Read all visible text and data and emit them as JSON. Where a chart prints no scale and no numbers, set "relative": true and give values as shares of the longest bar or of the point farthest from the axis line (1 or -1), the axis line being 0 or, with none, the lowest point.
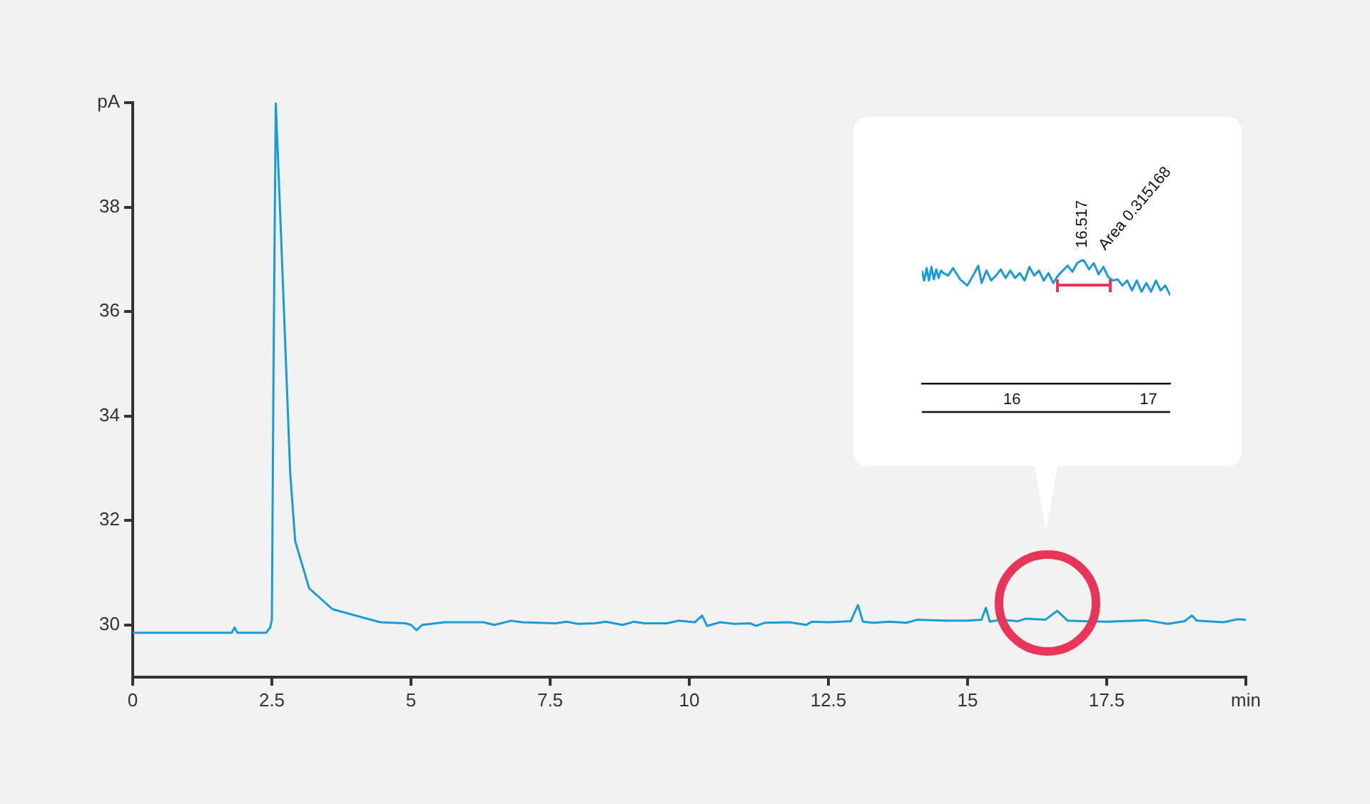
{
  "chart_data": [
    {
      "type": "line",
      "xlim": [
        0,
        20
      ],
      "ylim": [
        29,
        40
      ],
      "xticks": [
        0,
        2.5,
        5,
        7.5,
        10,
        12.5,
        15,
        17.5,
        {
          "value": 20,
          "label": "min"
        }
      ],
      "yticks": [
        30,
        32,
        34,
        36,
        38,
        {
          "value": 40,
          "label": "pA"
        }
      ],
      "x": [
        0,
        1.78,
        1.83,
        1.88,
        2.4,
        2.47,
        2.5,
        2.53,
        2.57,
        2.66,
        2.83,
        2.92,
        3.17,
        3.59,
        4.45,
        4.9,
        5.0,
        5.1,
        5.2,
        5.6,
        6.3,
        6.5,
        6.8,
        7.0,
        7.6,
        7.8,
        8.0,
        8.3,
        8.5,
        8.8,
        9.0,
        9.2,
        9.6,
        9.8,
        10.1,
        10.23,
        10.32,
        10.55,
        10.8,
        11.1,
        11.2,
        11.35,
        11.8,
        12.1,
        12.2,
        12.5,
        12.9,
        13.03,
        13.12,
        13.3,
        13.6,
        13.9,
        14.1,
        14.6,
        15.0,
        15.25,
        15.33,
        15.4,
        15.6,
        15.9,
        16.05,
        16.4,
        16.61,
        16.8,
        17.5,
        18.2,
        18.6,
        18.9,
        19.03,
        19.12,
        19.6,
        19.85,
        20
      ],
      "series": [
        {
          "color": "#1a9bd7",
          "values": [
            29.85,
            29.85,
            29.95,
            29.85,
            29.85,
            29.95,
            30.1,
            34.9,
            40,
            37.6,
            32.9,
            31.6,
            30.7,
            30.3,
            30.05,
            30.03,
            30.0,
            29.9,
            30.0,
            30.05,
            30.05,
            30.0,
            30.08,
            30.05,
            30.03,
            30.06,
            30.02,
            30.03,
            30.06,
            30.0,
            30.06,
            30.03,
            30.03,
            30.08,
            30.05,
            30.18,
            29.98,
            30.05,
            30.02,
            30.03,
            29.98,
            30.04,
            30.05,
            30.0,
            30.06,
            30.05,
            30.07,
            30.38,
            30.06,
            30.04,
            30.06,
            30.04,
            30.1,
            30.08,
            30.08,
            30.1,
            30.33,
            30.06,
            30.1,
            30.07,
            30.12,
            30.1,
            30.27,
            30.08,
            30.06,
            30.09,
            30.02,
            30.07,
            30.18,
            30.08,
            30.05,
            30.11,
            30.1
          ]
        }
      ]
    },
    {
      "type": "line",
      "relative": true,
      "tick_labels": "x",
      "xlim": [
        15.34,
        17.16
      ],
      "xticks": [
        16,
        17
      ],
      "x": [
        15.34,
        15.357,
        15.375,
        15.392,
        15.41,
        15.428,
        15.445,
        15.463,
        15.48,
        15.498,
        15.533,
        15.568,
        15.62,
        15.673,
        15.725,
        15.753,
        15.778,
        15.813,
        15.848,
        15.883,
        15.918,
        15.953,
        15.988,
        16.023,
        16.058,
        16.093,
        16.128,
        16.163,
        16.198,
        16.233,
        16.268,
        16.303,
        16.338,
        16.373,
        16.408,
        16.443,
        16.478,
        16.523,
        16.565,
        16.6,
        16.635,
        16.67,
        16.705,
        16.74,
        16.775,
        16.81,
        16.845,
        16.88,
        16.915,
        16.95,
        16.985,
        17.02,
        17.055,
        17.09,
        17.125,
        17.16
      ],
      "series": [
        {
          "color": "#1a9bd7",
          "values": [
            0.91,
            0.83,
            0.93,
            0.83,
            0.94,
            0.84,
            0.92,
            0.85,
            0.91,
            0.89,
            0.87,
            0.93,
            0.84,
            0.79,
            0.89,
            0.95,
            0.81,
            0.91,
            0.83,
            0.87,
            0.92,
            0.85,
            0.91,
            0.85,
            0.89,
            0.83,
            0.94,
            0.87,
            0.91,
            0.83,
            0.89,
            0.81,
            0.87,
            0.91,
            0.95,
            0.9,
            0.97,
            1,
            0.92,
            0.97,
            0.88,
            0.94,
            0.86,
            0.83,
            0.84,
            0.79,
            0.83,
            0.75,
            0.83,
            0.74,
            0.81,
            0.74,
            0.83,
            0.75,
            0.79,
            0.71
          ]
        }
      ],
      "annotations": [
        {
          "text": "16.517",
          "x": 16.517,
          "y": 1
        },
        {
          "text": "Area 0.315168",
          "x": 16.66,
          "y": 1
        }
      ]
    }
  ]
}
